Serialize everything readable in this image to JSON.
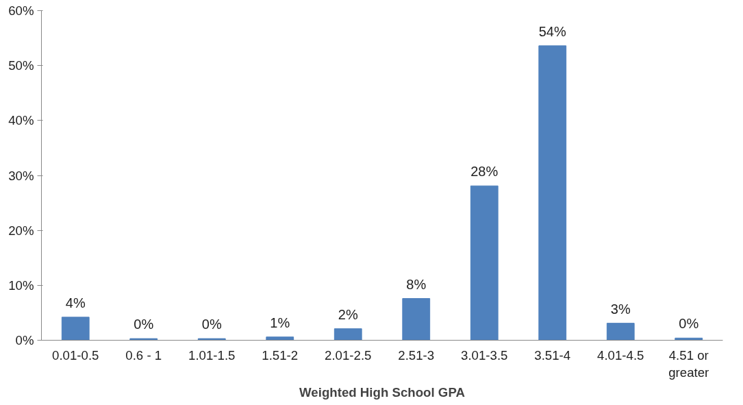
{
  "chart_data": {
    "type": "bar",
    "xlabel": "Weighted High School GPA",
    "categories": [
      "0.01-0.5",
      "0.6 - 1",
      "1.01-1.5",
      "1.51-2",
      "2.01-2.5",
      "2.51-3",
      "3.01-3.5",
      "3.51-4",
      "4.01-4.5",
      "4.51 or greater"
    ],
    "values": [
      4.2,
      0.3,
      0.3,
      0.6,
      2.1,
      7.6,
      28.1,
      53.6,
      3.1,
      0.4
    ],
    "value_labels": [
      "4%",
      "0%",
      "0%",
      "1%",
      "2%",
      "8%",
      "28%",
      "54%",
      "3%",
      "0%"
    ],
    "color": "#4f81bd",
    "ylim": [
      0,
      60
    ],
    "yticks": [
      {
        "value": 0,
        "label": "0%"
      },
      {
        "value": 10,
        "label": "10%"
      },
      {
        "value": 20,
        "label": "20%"
      },
      {
        "value": 30,
        "label": "30%"
      },
      {
        "value": 40,
        "label": "40%"
      },
      {
        "value": 50,
        "label": "50%"
      },
      {
        "value": 60,
        "label": "60%"
      }
    ],
    "grid": false
  }
}
